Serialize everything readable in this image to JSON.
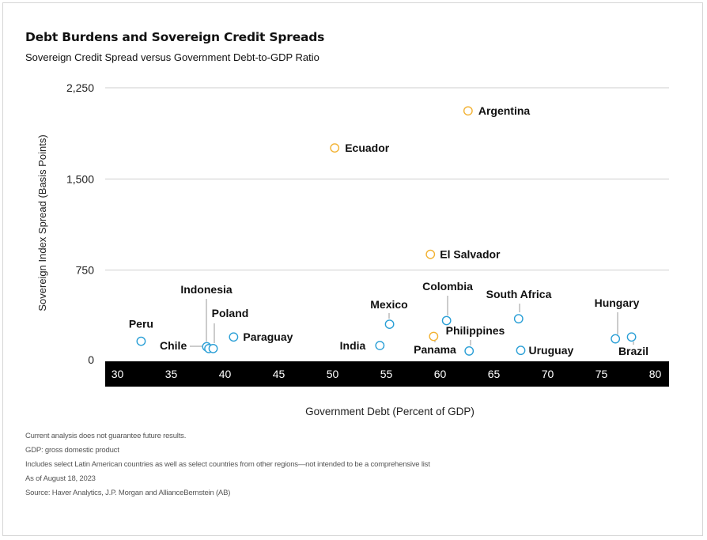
{
  "chart_data": {
    "type": "scatter",
    "title": "Debt Burdens and Sovereign Credit Spreads",
    "subtitle": "Sovereign Credit Spread versus Government Debt-to-GDP Ratio",
    "xlabel": "Government Debt (Percent of GDP)",
    "ylabel": "Sovereign Index Spread (Basis Points)",
    "xlim": [
      29,
      80.5
    ],
    "ylim": [
      0,
      2250
    ],
    "x_ticks": [
      30,
      35,
      40,
      45,
      50,
      55,
      60,
      65,
      70,
      75,
      80
    ],
    "y_ticks": [
      0,
      750,
      1500,
      2250
    ],
    "y_tick_labels": [
      "0",
      "750",
      "1,500",
      "2,250"
    ],
    "grid": "horizontal",
    "colors": {
      "default": "#2a9fd6",
      "highlight": "#f2b233",
      "axis_band": "#000000"
    },
    "points": [
      {
        "label": "Argentina",
        "x": 62.6,
        "y": 2060,
        "highlight": true
      },
      {
        "label": "Ecuador",
        "x": 50.2,
        "y": 1755,
        "highlight": true
      },
      {
        "label": "El Salvador",
        "x": 59.1,
        "y": 880,
        "highlight": true
      },
      {
        "label": "Panama",
        "x": 59.4,
        "y": 205,
        "highlight": true
      },
      {
        "label": "Peru",
        "x": 32.2,
        "y": 165,
        "highlight": false
      },
      {
        "label": "Chile",
        "x": 38.3,
        "y": 120,
        "highlight": false
      },
      {
        "label": "Indonesia",
        "x": 38.5,
        "y": 105,
        "highlight": false
      },
      {
        "label": "Poland",
        "x": 38.9,
        "y": 105,
        "highlight": false
      },
      {
        "label": "Paraguay",
        "x": 40.8,
        "y": 200,
        "highlight": false
      },
      {
        "label": "India",
        "x": 54.4,
        "y": 130,
        "highlight": false
      },
      {
        "label": "Mexico",
        "x": 55.3,
        "y": 305,
        "highlight": false
      },
      {
        "label": "Colombia",
        "x": 60.6,
        "y": 335,
        "highlight": false
      },
      {
        "label": "Philippines",
        "x": 62.7,
        "y": 85,
        "highlight": false
      },
      {
        "label": "South Africa",
        "x": 67.3,
        "y": 350,
        "highlight": false
      },
      {
        "label": "Uruguay",
        "x": 67.5,
        "y": 90,
        "highlight": false
      },
      {
        "label": "Hungary",
        "x": 76.3,
        "y": 185,
        "highlight": false
      },
      {
        "label": "Brazil",
        "x": 77.8,
        "y": 200,
        "highlight": false
      }
    ]
  },
  "notes": [
    "Current analysis does not guarantee future results.",
    "GDP: gross domestic product",
    "Includes select Latin American countries as well as select countries from other regions—not intended to be a comprehensive list",
    "As of August 18, 2023",
    "Source: Haver Analytics, J.P. Morgan and AllianceBernstein (AB)"
  ]
}
